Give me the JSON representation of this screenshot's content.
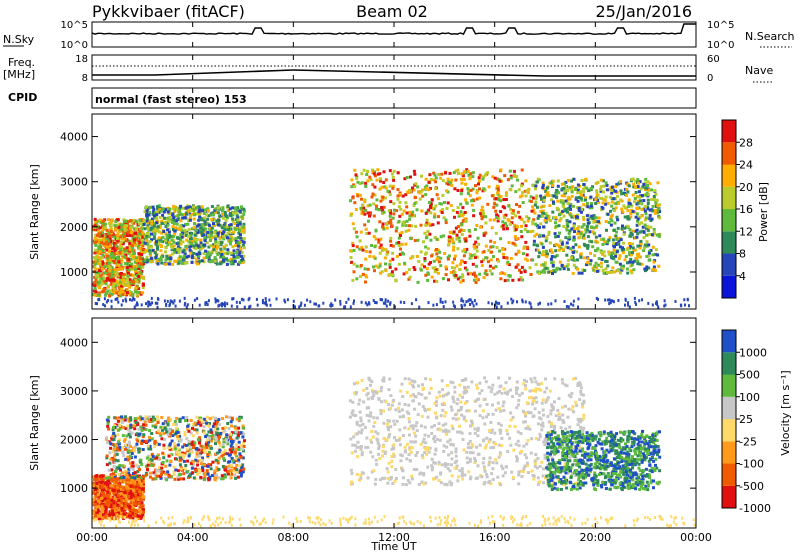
{
  "header": {
    "station": "Pykkvibaer (fitACF)",
    "beam": "Beam 02",
    "date": "25/Jan/2016"
  },
  "strip_panels": {
    "nsky_label": "N.Sky",
    "nsky_ticks": [
      "10^5",
      "10^0"
    ],
    "nsearch_label": "N.Search",
    "nsearch_ticks": [
      "10^5",
      "10^0"
    ],
    "freq_label": "Freq.",
    "freq_unit": "[MHz]",
    "freq_ticks": [
      "18",
      "8"
    ],
    "nave_label": "Nave",
    "nave_ticks": [
      "60",
      "0"
    ],
    "cpid_label": "CPID",
    "cpid_text": "normal (fast stereo) 153"
  },
  "colors": {
    "power_scale": [
      "#0a14d8",
      "#2545b8",
      "#2f8a5a",
      "#5dba3c",
      "#b9cc2c",
      "#ffae00",
      "#f05a00",
      "#e11010"
    ],
    "velocity_scale": [
      "#e11010",
      "#f05a00",
      "#ff9a1a",
      "#ffd96a",
      "#c7c7c7",
      "#5dba3c",
      "#2f8a5a",
      "#1f50c8"
    ]
  },
  "chart_data": [
    {
      "type": "heatmap",
      "panel": "power",
      "ylabel": "Slant Range [km]",
      "xlabel": "",
      "x_ticks": [
        "00:00",
        "04:00",
        "08:00",
        "12:00",
        "16:00",
        "20:00",
        "00:00"
      ],
      "xlim_hours": [
        0,
        24
      ],
      "ylim_km": [
        180,
        4500
      ],
      "y_ticks": [
        1000,
        2000,
        3000,
        4000
      ],
      "colorbar": {
        "label": "Power [dB]",
        "ticks": [
          "4",
          "8",
          "12",
          "16",
          "20",
          "24",
          "28"
        ],
        "range": [
          0,
          30
        ]
      },
      "echo_regions": [
        {
          "t_start": 0.0,
          "t_end": 2.0,
          "r_min": 500,
          "r_max": 2200,
          "level": "high"
        },
        {
          "t_start": 2.0,
          "t_end": 6.0,
          "r_min": 1200,
          "r_max": 2500,
          "level": "medium"
        },
        {
          "t_start": 10.2,
          "t_end": 17.5,
          "r_min": 800,
          "r_max": 3300,
          "level": "high"
        },
        {
          "t_start": 17.5,
          "t_end": 22.5,
          "r_min": 1000,
          "r_max": 3100,
          "level": "medium"
        }
      ]
    },
    {
      "type": "heatmap",
      "panel": "velocity",
      "ylabel": "Slant Range [km]",
      "xlabel": "Time UT",
      "x_ticks": [
        "00:00",
        "04:00",
        "08:00",
        "12:00",
        "16:00",
        "20:00",
        "00:00"
      ],
      "xlim_hours": [
        0,
        24
      ],
      "ylim_km": [
        180,
        4500
      ],
      "y_ticks": [
        1000,
        2000,
        3000,
        4000
      ],
      "colorbar": {
        "label": "Velocity [m s⁻¹]",
        "ticks": [
          "-1000",
          "-500",
          "-100",
          "-25",
          "25",
          "100",
          "500",
          "1000"
        ]
      },
      "echo_regions": [
        {
          "t_start": 0.0,
          "t_end": 2.0,
          "r_min": 400,
          "r_max": 1300,
          "level": "negative"
        },
        {
          "t_start": 0.5,
          "t_end": 6.0,
          "r_min": 1200,
          "r_max": 2500,
          "level": "mixed"
        },
        {
          "t_start": 10.2,
          "t_end": 19.5,
          "r_min": 1100,
          "r_max": 3300,
          "level": "near-zero"
        },
        {
          "t_start": 18.0,
          "t_end": 22.5,
          "r_min": 1000,
          "r_max": 2200,
          "level": "positive"
        }
      ]
    }
  ]
}
